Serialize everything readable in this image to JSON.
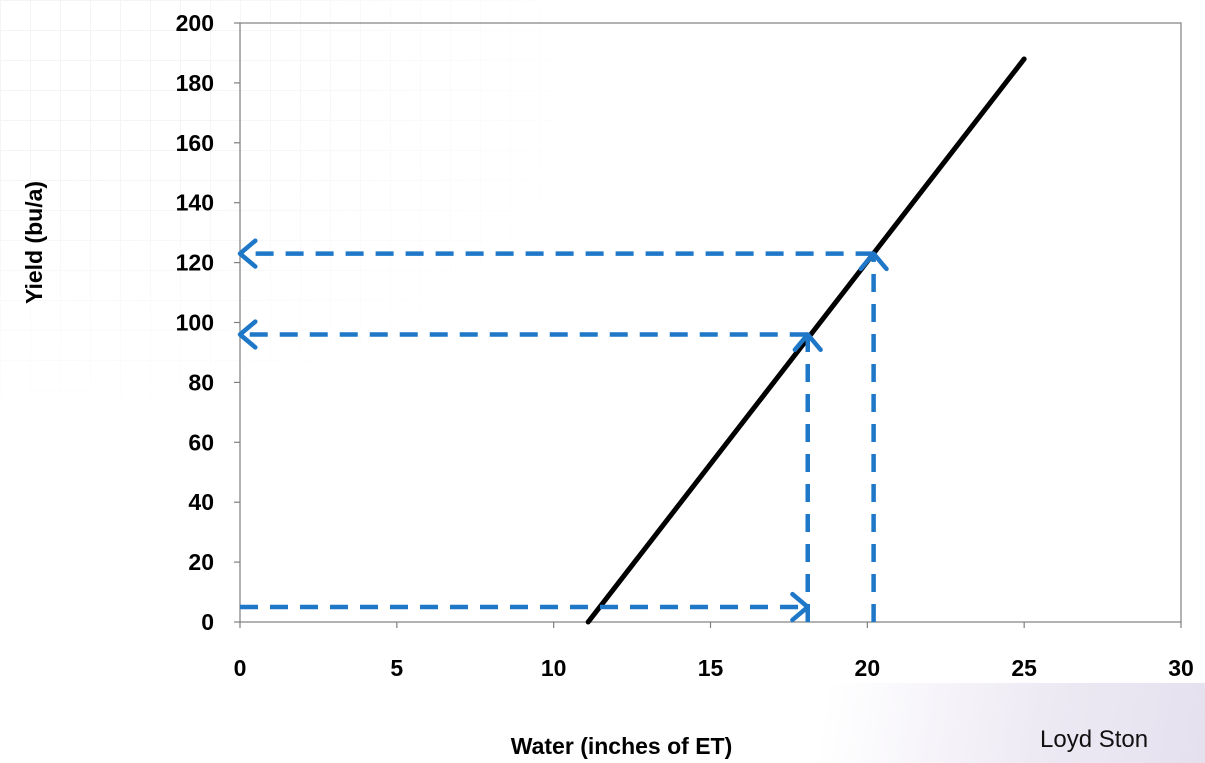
{
  "chart_data": {
    "type": "line",
    "title": "",
    "xlabel": "Water (inches of ET)",
    "ylabel": "Yield (bu/a)",
    "xlim": [
      0,
      30
    ],
    "ylim": [
      0,
      200
    ],
    "xticks": [
      "0",
      "5",
      "10",
      "15",
      "20",
      "25",
      "30"
    ],
    "yticks": [
      "0",
      "20",
      "40",
      "60",
      "80",
      "100",
      "120",
      "140",
      "160",
      "180",
      "200"
    ],
    "grid": false,
    "legend": "none",
    "series": [
      {
        "x": [
          11.1,
          25.0
        ],
        "y": [
          0,
          188
        ],
        "color": "#000000"
      }
    ],
    "annotations": [
      {
        "type": "arrow",
        "from": [
          0,
          5
        ],
        "to": [
          18.1,
          5
        ],
        "style": "dashed",
        "color": "#1f77c8"
      },
      {
        "type": "arrow",
        "from": [
          18.1,
          0
        ],
        "to": [
          18.1,
          96
        ],
        "style": "dashed",
        "color": "#1f77c8"
      },
      {
        "type": "arrow",
        "from": [
          18.1,
          96
        ],
        "to": [
          0,
          96
        ],
        "style": "dashed",
        "color": "#1f77c8"
      },
      {
        "type": "arrow",
        "from": [
          20.2,
          0
        ],
        "to": [
          20.2,
          123
        ],
        "style": "dashed",
        "color": "#1f77c8"
      },
      {
        "type": "arrow",
        "from": [
          20.2,
          123
        ],
        "to": [
          0,
          123
        ],
        "style": "dashed",
        "color": "#1f77c8"
      }
    ]
  },
  "credit": "Loyd Ston"
}
